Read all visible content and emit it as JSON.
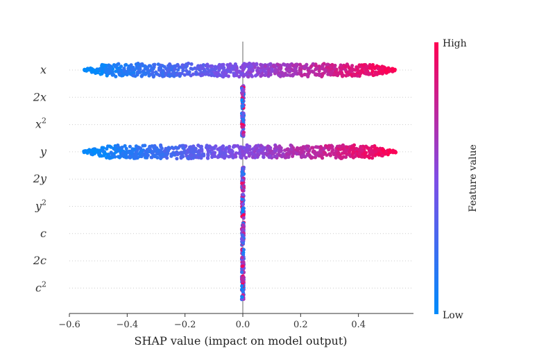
{
  "chart_data": {
    "type": "beeswarm",
    "title": "",
    "xlabel": "SHAP value (impact on model output)",
    "xlim": [
      -0.6,
      0.58
    ],
    "x_ticks": [
      "−0.6",
      "−0.4",
      "−0.2",
      "0.0",
      "0.2",
      "0.4"
    ],
    "x_tick_values": [
      -0.6,
      -0.4,
      -0.2,
      0.0,
      0.2,
      0.4
    ],
    "features": [
      {
        "name": "x",
        "sup": "",
        "min_shap": -0.55,
        "max_shap": 0.53,
        "importance": "high"
      },
      {
        "name": "2x",
        "sup": "",
        "min_shap": -0.006,
        "max_shap": 0.006,
        "importance": "zero"
      },
      {
        "name": "x",
        "sup": "2",
        "min_shap": -0.006,
        "max_shap": 0.006,
        "importance": "zero"
      },
      {
        "name": "y",
        "sup": "",
        "min_shap": -0.55,
        "max_shap": 0.53,
        "importance": "high"
      },
      {
        "name": "2y",
        "sup": "",
        "min_shap": -0.006,
        "max_shap": 0.006,
        "importance": "zero"
      },
      {
        "name": "y",
        "sup": "2",
        "min_shap": -0.006,
        "max_shap": 0.006,
        "importance": "zero"
      },
      {
        "name": "c",
        "sup": "",
        "min_shap": -0.006,
        "max_shap": 0.006,
        "importance": "zero"
      },
      {
        "name": "2c",
        "sup": "",
        "min_shap": -0.006,
        "max_shap": 0.006,
        "importance": "zero"
      },
      {
        "name": "c",
        "sup": "2",
        "min_shap": -0.006,
        "max_shap": 0.006,
        "importance": "zero"
      }
    ],
    "colorbar": {
      "label": "Feature value",
      "high_label": "High",
      "low_label": "Low",
      "low_color": "#008bfb",
      "high_color": "#ff0052",
      "mid_color": "#7f4de5"
    },
    "zero_line_color": "#999999"
  }
}
